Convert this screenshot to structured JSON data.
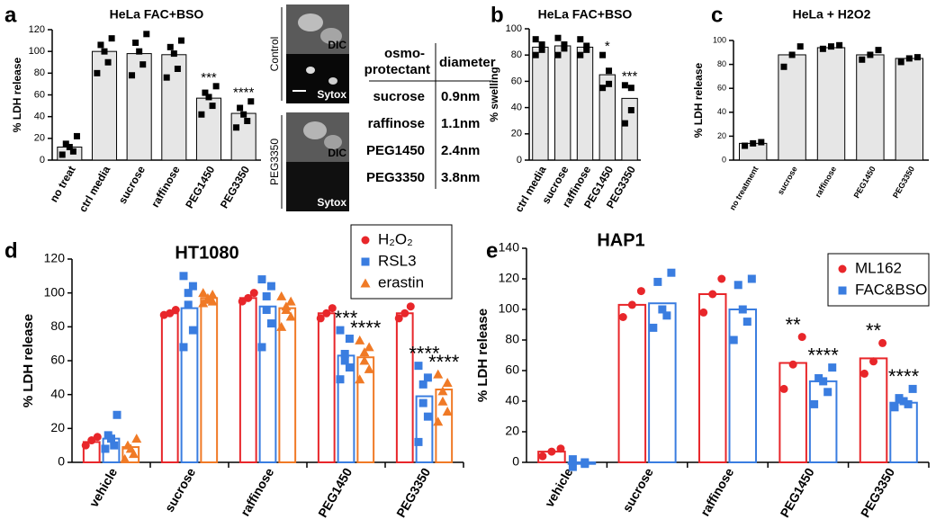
{
  "chart_data": [
    {
      "panel": "a",
      "type": "bar",
      "title": "HeLa  FAC+BSO",
      "ylabel": "% LDH release",
      "categories": [
        "no treat",
        "ctrl media",
        "sucrose",
        "raffinose",
        "PEG1450",
        "PEG3350"
      ],
      "values": [
        12,
        100,
        98,
        97,
        57,
        43
      ],
      "points": [
        [
          5,
          8,
          12,
          15,
          22
        ],
        [
          80,
          90,
          100,
          106,
          112
        ],
        [
          78,
          88,
          100,
          108,
          116
        ],
        [
          76,
          84,
          98,
          104,
          110
        ],
        [
          42,
          50,
          58,
          62,
          68
        ],
        [
          30,
          36,
          42,
          48,
          54
        ]
      ],
      "significance": [
        null,
        null,
        null,
        null,
        "***",
        "****"
      ],
      "color": "#e6e6e6",
      "point_color": "#000000",
      "marker": "square",
      "ylim": [
        0,
        120
      ],
      "yticks": [
        0,
        20,
        40,
        60,
        80,
        100,
        120
      ]
    },
    {
      "panel": "b",
      "type": "bar",
      "title": "HeLa  FAC+BSO",
      "ylabel": "% swelling",
      "categories": [
        "ctrl media",
        "sucrose",
        "raffinose",
        "PEG1450",
        "PEG3350"
      ],
      "values": [
        86,
        87,
        86,
        65,
        47
      ],
      "points": [
        [
          80,
          84,
          88,
          92
        ],
        [
          80,
          85,
          88,
          93
        ],
        [
          80,
          84,
          87,
          92
        ],
        [
          55,
          58,
          68,
          80
        ],
        [
          28,
          38,
          55,
          57
        ]
      ],
      "significance": [
        null,
        null,
        null,
        "*",
        "***"
      ],
      "color": "#e6e6e6",
      "point_color": "#000000",
      "marker": "square",
      "ylim": [
        0,
        100
      ],
      "yticks": [
        0,
        20,
        40,
        60,
        80,
        100
      ]
    },
    {
      "panel": "c",
      "type": "bar",
      "title": "HeLa + H2O2",
      "ylabel": "% LDH release",
      "categories": [
        "no treatment",
        "sucrose",
        "raffinose",
        "PEG1450",
        "PEG3350"
      ],
      "values": [
        14,
        88,
        94,
        88,
        85
      ],
      "points": [
        [
          12,
          14,
          15
        ],
        [
          78,
          88,
          95
        ],
        [
          93,
          95,
          96
        ],
        [
          84,
          88,
          92
        ],
        [
          82,
          85,
          86
        ]
      ],
      "color": "#e6e6e6",
      "point_color": "#000000",
      "marker": "square",
      "ylim": [
        0,
        100
      ],
      "yticks": [
        0,
        20,
        40,
        60,
        80,
        100
      ]
    },
    {
      "panel": "d",
      "type": "bar",
      "title": "HT1080",
      "ylabel": "% LDH release",
      "categories": [
        "vehicle",
        "sucrose",
        "raffinose",
        "PEG1450",
        "PEG3350"
      ],
      "series": [
        {
          "name": "H₂O₂",
          "color": "#e8262a",
          "marker": "circle",
          "values": [
            12,
            88,
            97,
            88,
            88
          ],
          "points": [
            [
              10,
              13,
              15
            ],
            [
              87,
              88,
              90
            ],
            [
              95,
              97,
              100
            ],
            [
              85,
              88,
              91
            ],
            [
              85,
              88,
              92
            ]
          ]
        },
        {
          "name": "RSL3",
          "color": "#3a7de0",
          "marker": "square",
          "values": [
            14,
            91,
            92,
            63,
            39
          ],
          "points": [
            [
              8,
              10,
              14,
              16,
              28
            ],
            [
              68,
              78,
              93,
              100,
              104,
              110
            ],
            [
              68,
              82,
              90,
              98,
              104,
              108
            ],
            [
              49,
              56,
              60,
              64,
              73,
              78
            ],
            [
              12,
              27,
              35,
              46,
              50,
              57
            ]
          ],
          "significance": [
            null,
            null,
            null,
            "***",
            "****"
          ]
        },
        {
          "name": "erastin",
          "color": "#f07a26",
          "marker": "triangle",
          "values": [
            9,
            97,
            91,
            62,
            43
          ],
          "points": [
            [
              2,
              5,
              8,
              10,
              14
            ],
            [
              94,
              95,
              96,
              97,
              99,
              100
            ],
            [
              80,
              86,
              90,
              92,
              95,
              98
            ],
            [
              49,
              55,
              60,
              65,
              68,
              72
            ],
            [
              24,
              30,
              36,
              42,
              47,
              52
            ]
          ],
          "significance": [
            null,
            null,
            null,
            "****",
            "****"
          ]
        }
      ],
      "ylim": [
        0,
        120
      ],
      "yticks": [
        0,
        20,
        40,
        60,
        80,
        100,
        120
      ]
    },
    {
      "panel": "e",
      "type": "bar",
      "title": "HAP1",
      "ylabel": "% LDH release",
      "categories": [
        "vehicle",
        "sucrose",
        "raffinose",
        "PEG1450",
        "PEG3350"
      ],
      "series": [
        {
          "name": "ML162",
          "color": "#e8262a",
          "marker": "circle",
          "values": [
            7,
            103,
            110,
            65,
            68
          ],
          "points": [
            [
              4,
              7,
              9
            ],
            [
              95,
              103,
              112
            ],
            [
              98,
              110,
              120
            ],
            [
              48,
              64,
              82
            ],
            [
              58,
              66,
              78
            ]
          ],
          "significance": [
            null,
            null,
            null,
            "**",
            "**"
          ]
        },
        {
          "name": "FAC&BSO",
          "color": "#3a7de0",
          "marker": "square",
          "values": [
            -1,
            104,
            100,
            53,
            39
          ],
          "points": [
            [
              -3,
              -1,
              0,
              2
            ],
            [
              88,
              96,
              100,
              118,
              124
            ],
            [
              80,
              92,
              100,
              116,
              120
            ],
            [
              38,
              46,
              53,
              55,
              62
            ],
            [
              36,
              38,
              40,
              42,
              48
            ]
          ],
          "significance": [
            null,
            null,
            null,
            "****",
            "****"
          ]
        }
      ],
      "ylim": [
        0,
        140
      ],
      "yticks": [
        0,
        20,
        40,
        60,
        80,
        100,
        120,
        140
      ]
    }
  ],
  "micrograph": {
    "conditions": [
      "Control",
      "PEG3350"
    ],
    "channels": [
      "DIC",
      "Sytox"
    ]
  },
  "table": {
    "header": [
      [
        "osmo-",
        "protectant"
      ],
      "diameter"
    ],
    "rows": [
      [
        "sucrose",
        "0.9nm"
      ],
      [
        "raffinose",
        "1.1nm"
      ],
      [
        "PEG1450",
        "2.4nm"
      ],
      [
        "PEG3350",
        "3.8nm"
      ]
    ]
  }
}
